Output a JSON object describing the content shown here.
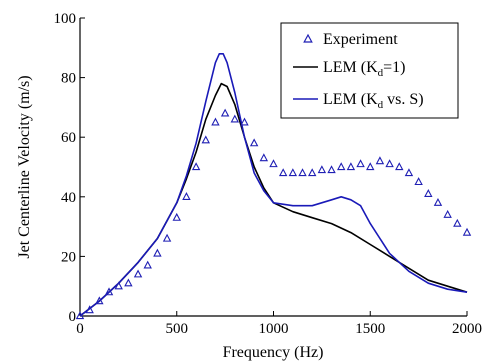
{
  "chart_data": {
    "type": "line",
    "xlabel": "Frequency (Hz)",
    "ylabel": "Jet Centerline Velocity (m/s)",
    "xlim": [
      0,
      2000
    ],
    "ylim": [
      0,
      100
    ],
    "x_ticks": [
      "0",
      "500",
      "1000",
      "1500",
      "2000"
    ],
    "y_ticks": [
      "0",
      "20",
      "40",
      "60",
      "80",
      "100"
    ],
    "grid": false,
    "legend_position": "top-right",
    "legend": {
      "experiment": "Experiment",
      "lem1_prefix": "LEM (K",
      "lem1_sub": "d",
      "lem1_suffix": "=1)",
      "lem2_prefix": "LEM (K",
      "lem2_sub": "d",
      "lem2_suffix": " vs. S)"
    },
    "colors": {
      "experiment": "#1f1fb4",
      "lem1": "#000000",
      "lem2": "#1a1ab8"
    },
    "series": [
      {
        "name": "Experiment",
        "style": "markers-triangle",
        "x": [
          0,
          50,
          100,
          150,
          200,
          250,
          300,
          350,
          400,
          450,
          500,
          550,
          600,
          650,
          700,
          750,
          800,
          850,
          900,
          950,
          1000,
          1050,
          1100,
          1150,
          1200,
          1250,
          1300,
          1350,
          1400,
          1450,
          1500,
          1550,
          1600,
          1650,
          1700,
          1750,
          1800,
          1850,
          1900,
          1950,
          2000
        ],
        "y": [
          0,
          2,
          5,
          8,
          10,
          11,
          14,
          17,
          21,
          26,
          33,
          40,
          50,
          59,
          65,
          68,
          66,
          65,
          58,
          53,
          51,
          48,
          48,
          48,
          48,
          49,
          49,
          50,
          50,
          51,
          50,
          52,
          51,
          50,
          48,
          45,
          41,
          38,
          34,
          31,
          28
        ]
      },
      {
        "name": "LEM (Kd=1)",
        "style": "line",
        "x": [
          0,
          100,
          200,
          300,
          400,
          500,
          550,
          600,
          650,
          700,
          730,
          760,
          800,
          850,
          900,
          950,
          1000,
          1100,
          1200,
          1300,
          1400,
          1500,
          1600,
          1700,
          1800,
          1900,
          2000
        ],
        "y": [
          0,
          5,
          11,
          18,
          26,
          38,
          46,
          55,
          66,
          74,
          78,
          77,
          71,
          60,
          50,
          43,
          38,
          35,
          33,
          31,
          28,
          24,
          20,
          16,
          12,
          10,
          8
        ]
      },
      {
        "name": "LEM (Kd vs. S)",
        "style": "line",
        "x": [
          0,
          100,
          200,
          300,
          400,
          500,
          550,
          600,
          650,
          700,
          720,
          740,
          760,
          800,
          850,
          900,
          950,
          1000,
          1100,
          1200,
          1300,
          1350,
          1400,
          1450,
          1500,
          1600,
          1700,
          1800,
          1900,
          2000
        ],
        "y": [
          0,
          5,
          11,
          18,
          26,
          38,
          47,
          58,
          72,
          85,
          88,
          88,
          85,
          75,
          60,
          48,
          42,
          38,
          37,
          37,
          39,
          40,
          39,
          37,
          31,
          21,
          15,
          11,
          9,
          8
        ]
      }
    ]
  }
}
